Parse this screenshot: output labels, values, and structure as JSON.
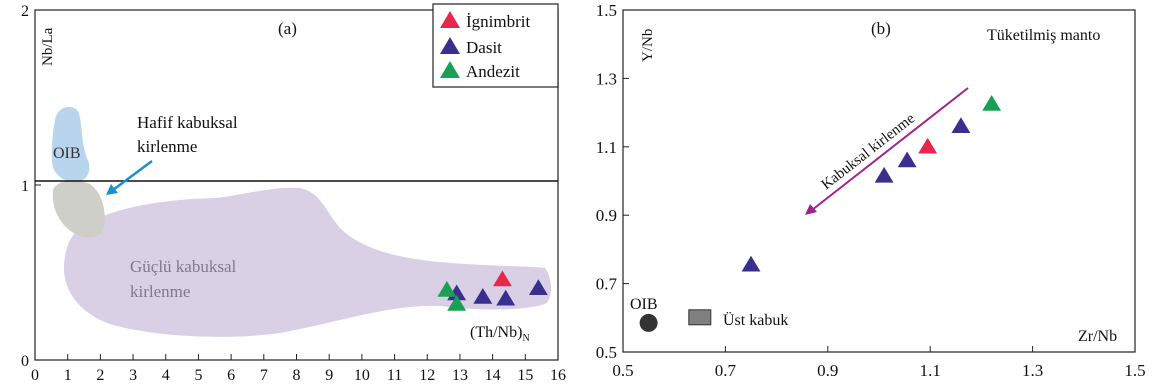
{
  "chart_data": [
    {
      "type": "scatter",
      "panel_label": "(a)",
      "xlabel": "(Th/Nb)",
      "xlabel_sub": "N",
      "ylabel": "Nb/La",
      "xlim": [
        0,
        16
      ],
      "ylim": [
        0,
        2
      ],
      "xticks": [
        "0",
        "1",
        "2",
        "3",
        "4",
        "5",
        "6",
        "7",
        "8",
        "9",
        "10",
        "11",
        "12",
        "13",
        "14",
        "15",
        "16"
      ],
      "yticks": [
        "0",
        "1",
        "2"
      ],
      "grid": false,
      "legend_position": "top-right",
      "reference_line_y": 1,
      "regions": [
        {
          "name": "OIB",
          "label": "OIB",
          "color": "#b9d5ee"
        },
        {
          "name": "gray-field",
          "label": "",
          "color": "#cfcfca"
        },
        {
          "name": "strong-crustal",
          "label_line1": "Güçlü kabuksal",
          "label_line2": "kirlenme",
          "color": "#d9d0e6"
        }
      ],
      "annotation": {
        "line1": "Hafif kabuksal",
        "line2": "kirlenme",
        "arrow_color": "#1a8fd4"
      },
      "series": [
        {
          "name": "İgnimbrit",
          "color": "#e8274e",
          "points": [
            [
              14.3,
              0.46
            ]
          ]
        },
        {
          "name": "Dasit",
          "color": "#3a2f8f",
          "points": [
            [
              12.9,
              0.38
            ],
            [
              13.7,
              0.36
            ],
            [
              14.4,
              0.35
            ],
            [
              15.4,
              0.41
            ]
          ]
        },
        {
          "name": "Andezit",
          "color": "#1aa055",
          "points": [
            [
              12.6,
              0.4
            ],
            [
              12.9,
              0.32
            ]
          ]
        }
      ]
    },
    {
      "type": "scatter",
      "panel_label": "(b)",
      "xlabel": "Zr/Nb",
      "ylabel": "Y/Nb",
      "xlim": [
        0.5,
        1.5
      ],
      "ylim": [
        0.5,
        1.5
      ],
      "xticks": [
        "0.5",
        "0.7",
        "0.9",
        "1.1",
        "1.3",
        "1.5"
      ],
      "yticks": [
        "0.5",
        "0.7",
        "0.9",
        "1.1",
        "1.3",
        "1.5"
      ],
      "grid": false,
      "corner_label": "Tüketilmiş manto",
      "arrow_label": "Kabuksal kirlenme",
      "arrow_color": "#a0228c",
      "reference_points": [
        {
          "label": "OIB",
          "x": 0.55,
          "y": 0.585,
          "color": "#333333"
        },
        {
          "label": "Üst kabuk",
          "x": 0.65,
          "y": 0.6,
          "color": "#808080"
        }
      ],
      "series": [
        {
          "name": "İgnimbrit",
          "color": "#e8274e",
          "points": [
            [
              1.095,
              1.1
            ]
          ]
        },
        {
          "name": "Dasit",
          "color": "#3a2f8f",
          "points": [
            [
              0.75,
              0.755
            ],
            [
              1.01,
              1.015
            ],
            [
              1.055,
              1.06
            ],
            [
              1.16,
              1.16
            ]
          ]
        },
        {
          "name": "Andezit",
          "color": "#1aa055",
          "points": [
            [
              1.22,
              1.225
            ]
          ]
        }
      ]
    }
  ]
}
